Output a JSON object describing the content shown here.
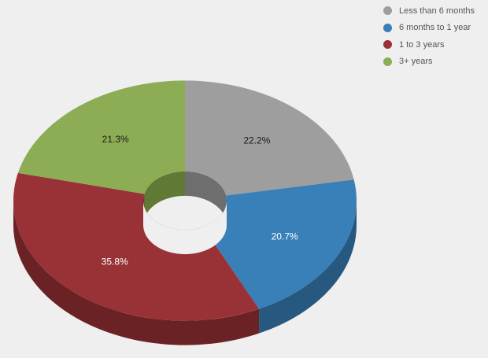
{
  "chart_data": {
    "type": "pie",
    "title": "",
    "categories": [
      "Less than 6 months",
      "6 months to 1 year",
      "1 to 3 years",
      "3+ years"
    ],
    "values": [
      22.2,
      20.7,
      35.8,
      21.3
    ],
    "labels": [
      "22.2%",
      "20.7%",
      "35.8%",
      "21.3%"
    ],
    "colors": [
      "#9e9e9e",
      "#3a80b8",
      "#983236",
      "#8dad54"
    ],
    "side_colors": [
      "#6e6e6e",
      "#27587f",
      "#6b2225",
      "#607a36"
    ],
    "label_colors": [
      "#1a1a1a",
      "#ffffff",
      "#ffffff",
      "#1a1a1a"
    ],
    "donut": true,
    "three_d": true,
    "legend": "top-right"
  }
}
